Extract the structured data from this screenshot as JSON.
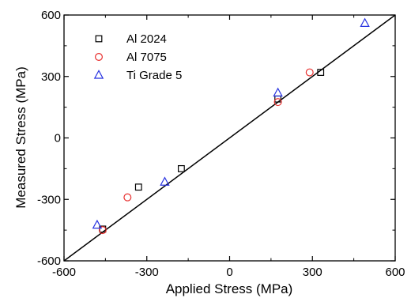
{
  "chart_data": {
    "type": "scatter",
    "title": "",
    "xlabel": "Applied Stress (MPa)",
    "ylabel": "Measured Stress (MPa)",
    "xlim": [
      -600,
      600
    ],
    "ylim": [
      -600,
      600
    ],
    "xticks": [
      -600,
      -300,
      0,
      300,
      600
    ],
    "yticks": [
      -600,
      -300,
      0,
      300,
      600
    ],
    "xtick_labels": [
      "-600",
      "-300",
      "0",
      "300",
      "600"
    ],
    "ytick_labels": [
      "-600",
      "-300",
      "0",
      "300",
      "600"
    ],
    "grid": false,
    "legend_position": "top-left",
    "reference_line": {
      "type": "y=x",
      "color": "#000000"
    },
    "series": [
      {
        "name": "Al 2024",
        "marker": "square",
        "color": "#000000",
        "points": [
          {
            "x": 330,
            "y": 320
          },
          {
            "x": 175,
            "y": 190
          },
          {
            "x": -175,
            "y": -150
          },
          {
            "x": -330,
            "y": -240
          },
          {
            "x": -460,
            "y": -445
          }
        ]
      },
      {
        "name": "Al 7075",
        "marker": "circle",
        "color": "#e8302f",
        "points": [
          {
            "x": 290,
            "y": 320
          },
          {
            "x": 175,
            "y": 175
          },
          {
            "x": -370,
            "y": -290
          },
          {
            "x": -460,
            "y": -450
          }
        ]
      },
      {
        "name": "Ti Grade 5",
        "marker": "triangle",
        "color": "#2530e0",
        "points": [
          {
            "x": 490,
            "y": 560
          },
          {
            "x": 175,
            "y": 220
          },
          {
            "x": -235,
            "y": -215
          },
          {
            "x": -480,
            "y": -425
          }
        ]
      }
    ]
  }
}
